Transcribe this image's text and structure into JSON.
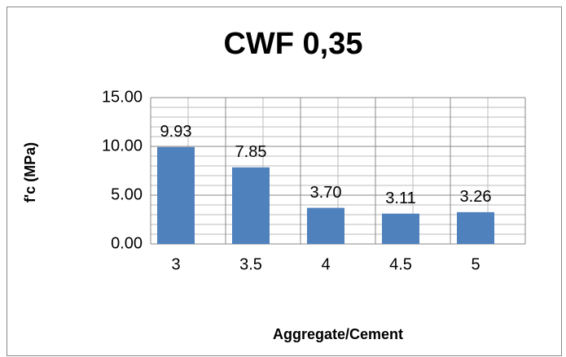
{
  "chart_data": {
    "type": "bar",
    "title": "CWF 0,35",
    "x_label": "Aggregate/Cement",
    "y_label": "f'c (MPa)",
    "categories": [
      "3",
      "3.5",
      "4",
      "4.5",
      "5"
    ],
    "values": [
      9.93,
      7.85,
      3.7,
      3.11,
      3.26
    ],
    "value_labels": [
      "9.93",
      "7.85",
      "3.70",
      "3.11",
      "3.26"
    ],
    "color": "#4f81bd",
    "ylim": [
      0,
      15
    ],
    "yticks": [
      {
        "value": 0,
        "label": "0.00"
      },
      {
        "value": 5,
        "label": "5.00"
      },
      {
        "value": 10,
        "label": "10.00"
      },
      {
        "value": 15,
        "label": "15.00"
      }
    ],
    "grid": true,
    "minor_grid": true
  }
}
